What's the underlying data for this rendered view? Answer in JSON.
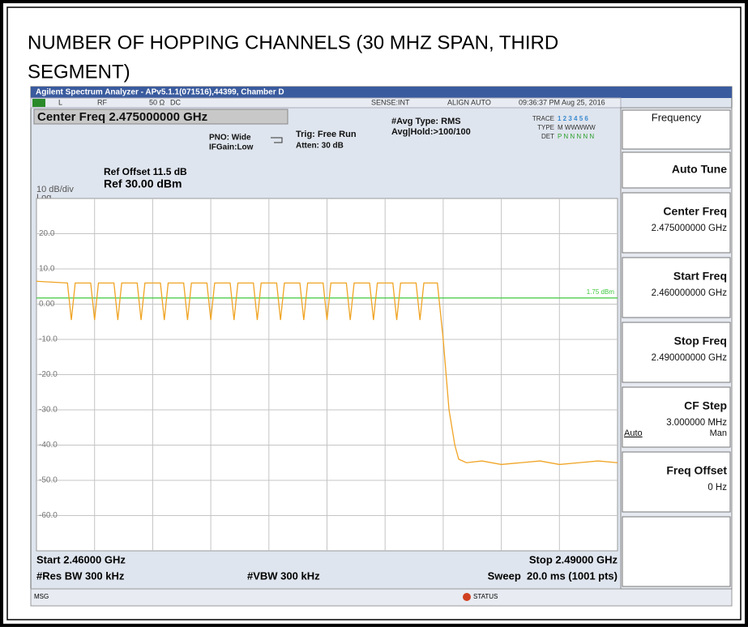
{
  "title_lines": [
    "NUMBER OF HOPPING CHANNELS (30 MHZ SPAN, THIRD",
    "SEGMENT)"
  ],
  "app_title": "Agilent Spectrum Analyzer - APv5.1.1(071516),44399, Chamber D",
  "status_row": {
    "mode": "L",
    "rf": "RF",
    "impedance": "50 Ω",
    "coupling": "DC",
    "sense": "SENSE:INT",
    "align": "ALIGN AUTO",
    "time": "09:36:37 PM Aug 25, 2016"
  },
  "settings": {
    "center_freq": "Center Freq 2.475000000 GHz",
    "pno": "PNO: Wide",
    "ifgain": "IFGain:Low",
    "trig": "Trig: Free Run",
    "atten": "Atten: 30 dB",
    "avg_type": "#Avg Type: RMS",
    "avg_hold": "Avg|Hold:>100/100"
  },
  "trace_info": {
    "trace_label": "TRACE",
    "trace_value": "1 2 3 4 5 6",
    "type_label": "TYPE",
    "type_value": "M WWWWW",
    "det_label": "DET",
    "det_value": "P N N N N N"
  },
  "ref": {
    "offset": "Ref Offset 11.5 dB",
    "level": "Ref 30.00 dBm",
    "scale": "10 dB/div",
    "scale_type": "Log"
  },
  "footer": {
    "start": "Start 2.46000 GHz",
    "stop": "Stop 2.49000 GHz",
    "rbw": "#Res BW 300 kHz",
    "vbw": "#VBW 300 kHz",
    "sweep": "Sweep  20.0 ms (1001 pts)"
  },
  "msg_bar": {
    "msg": "MSG",
    "status": "STATUS"
  },
  "softkeys": {
    "menu": "Frequency",
    "keys": [
      {
        "label": "Auto Tune"
      },
      {
        "label": "Center Freq",
        "value": "2.475000000 GHz"
      },
      {
        "label": "Start Freq",
        "value": "2.460000000 GHz"
      },
      {
        "label": "Stop Freq",
        "value": "2.490000000 GHz"
      },
      {
        "label": "CF Step",
        "value": "3.000000 MHz",
        "options": [
          "Auto",
          "Man"
        ]
      },
      {
        "label": "Freq Offset",
        "value": "0 Hz"
      }
    ]
  },
  "chart_data": {
    "type": "line",
    "color": "#f0a424",
    "grid": true,
    "xlim": [
      2.46,
      2.49
    ],
    "ylim": [
      -70,
      30
    ],
    "xticks": [
      2.463,
      2.466,
      2.469,
      2.472,
      2.475,
      2.478,
      2.481,
      2.484,
      2.487
    ],
    "yticks": [
      {
        "value": 20,
        "label": "20.0"
      },
      {
        "value": 10,
        "label": "10.0"
      },
      {
        "value": 0,
        "label": "0.00"
      },
      {
        "value": -10,
        "label": "-10.0"
      },
      {
        "value": -20,
        "label": "-20.0"
      },
      {
        "value": -30,
        "label": "-30.0"
      },
      {
        "value": -40,
        "label": "-40.0"
      },
      {
        "value": -50,
        "label": "-50.0"
      },
      {
        "value": -60,
        "label": "-60.0"
      }
    ],
    "display_line": {
      "value": 1.75,
      "label": "1.75 dBm",
      "color": "#3cc83c"
    },
    "x": [
      2.46,
      2.4616,
      2.4618,
      2.462,
      2.4628,
      2.463,
      2.4632,
      2.464,
      2.4642,
      2.4644,
      2.4652,
      2.4654,
      2.4656,
      2.4664,
      2.4666,
      2.4668,
      2.4676,
      2.4678,
      2.468,
      2.4688,
      2.469,
      2.4692,
      2.47,
      2.4702,
      2.4704,
      2.4712,
      2.4714,
      2.4716,
      2.4724,
      2.4726,
      2.4728,
      2.4736,
      2.4738,
      2.474,
      2.4748,
      2.475,
      2.4752,
      2.476,
      2.4762,
      2.4764,
      2.4772,
      2.4774,
      2.4776,
      2.4784,
      2.4786,
      2.4788,
      2.4796,
      2.4798,
      2.48,
      2.4807,
      2.481,
      2.4813,
      2.4816,
      2.4818,
      2.4822,
      2.483,
      2.484,
      2.485,
      2.486,
      2.487,
      2.488,
      2.489,
      2.49
    ],
    "values": [
      6.5,
      6,
      -4.5,
      6,
      6,
      -4.5,
      6,
      6,
      -4.5,
      6,
      6,
      -4.5,
      6,
      6,
      -4.5,
      6,
      6,
      -4.5,
      6,
      6,
      -4.5,
      6,
      6,
      -4.5,
      6,
      6,
      -4.5,
      6,
      6,
      -4.5,
      6,
      6,
      -4.5,
      6,
      6,
      -4.5,
      6,
      6,
      -4.5,
      6,
      6,
      -4.5,
      6,
      6,
      -4.5,
      6,
      6,
      -4.5,
      6,
      6,
      -10,
      -30,
      -40,
      -44,
      -45,
      -44.5,
      -45.5,
      -45,
      -44.5,
      -45.5,
      -45,
      -44.5,
      -45
    ]
  }
}
